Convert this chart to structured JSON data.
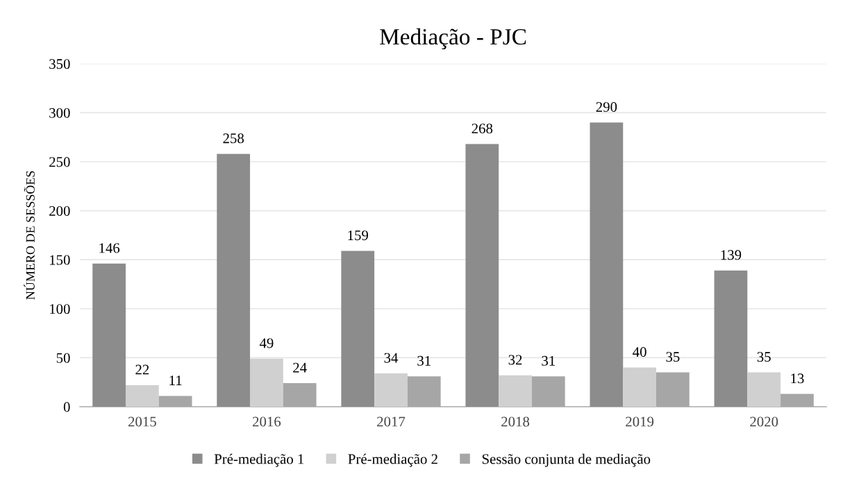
{
  "chart_data": {
    "type": "bar",
    "title": "Mediação - PJC",
    "ylabel": "NÚMERO DE SESSÕES",
    "categories": [
      "2015",
      "2016",
      "2017",
      "2018",
      "2019",
      "2020"
    ],
    "series": [
      {
        "name": "Pré-mediação 1",
        "color": "#8c8c8c",
        "values": [
          146,
          258,
          159,
          268,
          290,
          139
        ]
      },
      {
        "name": "Pré-mediação 2",
        "color": "#d0d0d0",
        "values": [
          22,
          49,
          34,
          32,
          40,
          35
        ]
      },
      {
        "name": "Sessão conjunta de mediação",
        "color": "#a6a6a6",
        "values": [
          11,
          24,
          31,
          31,
          35,
          13
        ]
      }
    ],
    "ylim": [
      0,
      350
    ],
    "yticks": [
      0,
      50,
      100,
      150,
      200,
      250,
      300,
      350
    ],
    "grid": "y",
    "legend": "bottom",
    "data_labels": true
  }
}
